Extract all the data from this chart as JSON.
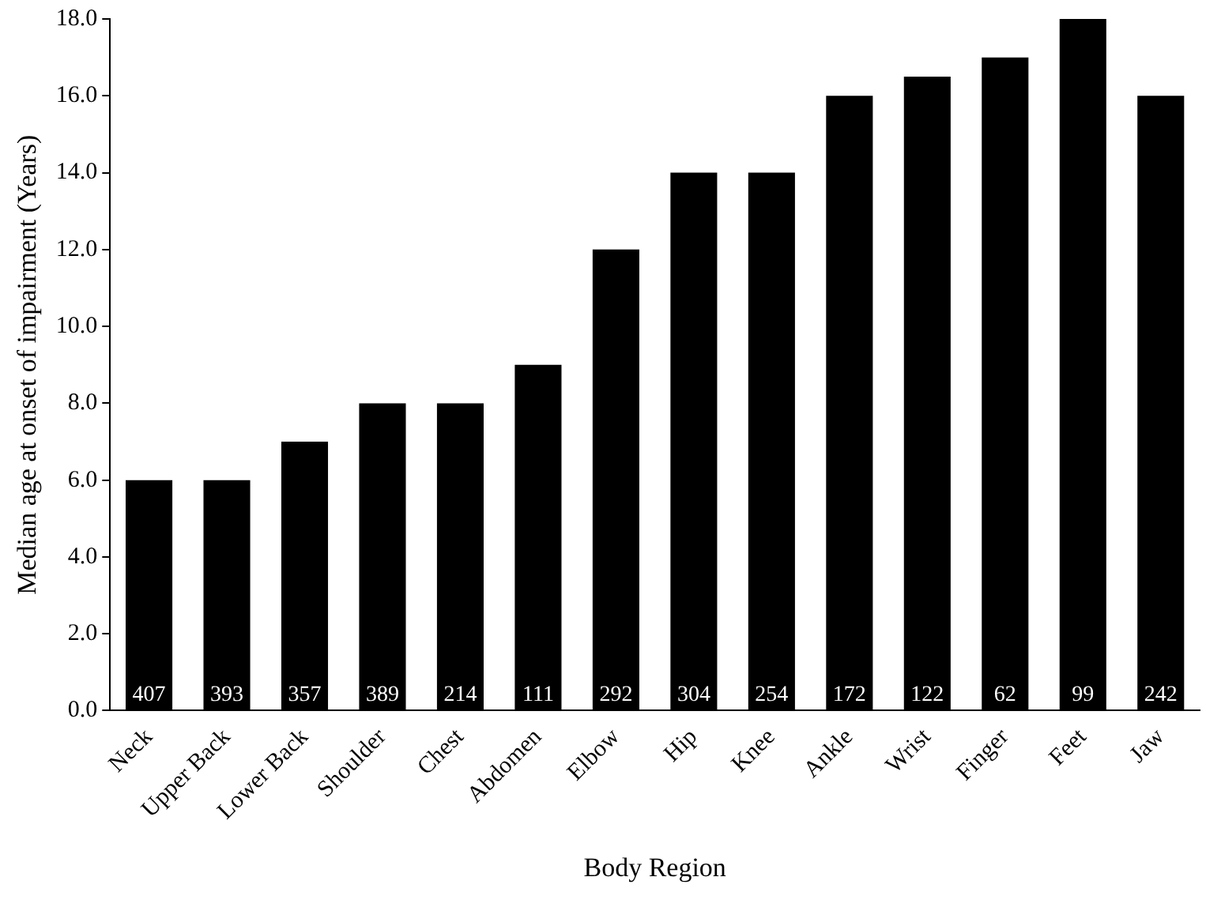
{
  "chart_data": {
    "type": "bar",
    "xlabel": "Body Region",
    "ylabel": "Median age at onset of impairment (Years)",
    "categories": [
      "Neck",
      "Upper Back",
      "Lower Back",
      "Shoulder",
      "Chest",
      "Abdomen",
      "Elbow",
      "Hip",
      "Knee",
      "Ankle",
      "Wrist",
      "Finger",
      "Feet",
      "Jaw"
    ],
    "values": [
      6,
      6,
      7,
      8,
      8,
      9,
      12,
      14,
      14,
      16,
      16.5,
      17,
      18,
      16
    ],
    "color": "#000000",
    "ylim": [
      0,
      18
    ],
    "yticks": [
      {
        "value": 0,
        "label": "0.0"
      },
      {
        "value": 2,
        "label": "2.0"
      },
      {
        "value": 4,
        "label": "4.0"
      },
      {
        "value": 6,
        "label": "6.0"
      },
      {
        "value": 8,
        "label": "8.0"
      },
      {
        "value": 10,
        "label": "10.0"
      },
      {
        "value": 12,
        "label": "12.0"
      },
      {
        "value": 14,
        "label": "14.0"
      },
      {
        "value": 16,
        "label": "16.0"
      },
      {
        "value": 18,
        "label": "18.0"
      }
    ],
    "grid": false,
    "legend": false,
    "annotations": [
      {
        "text": "407",
        "x": "Neck",
        "y": 0
      },
      {
        "text": "393",
        "x": "Upper Back",
        "y": 0
      },
      {
        "text": "357",
        "x": "Lower Back",
        "y": 0
      },
      {
        "text": "389",
        "x": "Shoulder",
        "y": 0
      },
      {
        "text": "214",
        "x": "Chest",
        "y": 0
      },
      {
        "text": "111",
        "x": "Abdomen",
        "y": 0
      },
      {
        "text": "292",
        "x": "Elbow",
        "y": 0
      },
      {
        "text": "304",
        "x": "Hip",
        "y": 0
      },
      {
        "text": "254",
        "x": "Knee",
        "y": 0
      },
      {
        "text": "172",
        "x": "Ankle",
        "y": 0
      },
      {
        "text": "122",
        "x": "Wrist",
        "y": 0
      },
      {
        "text": "62",
        "x": "Finger",
        "y": 0
      },
      {
        "text": "99",
        "x": "Feet",
        "y": 0
      },
      {
        "text": "242",
        "x": "Jaw",
        "y": 0
      }
    ]
  }
}
